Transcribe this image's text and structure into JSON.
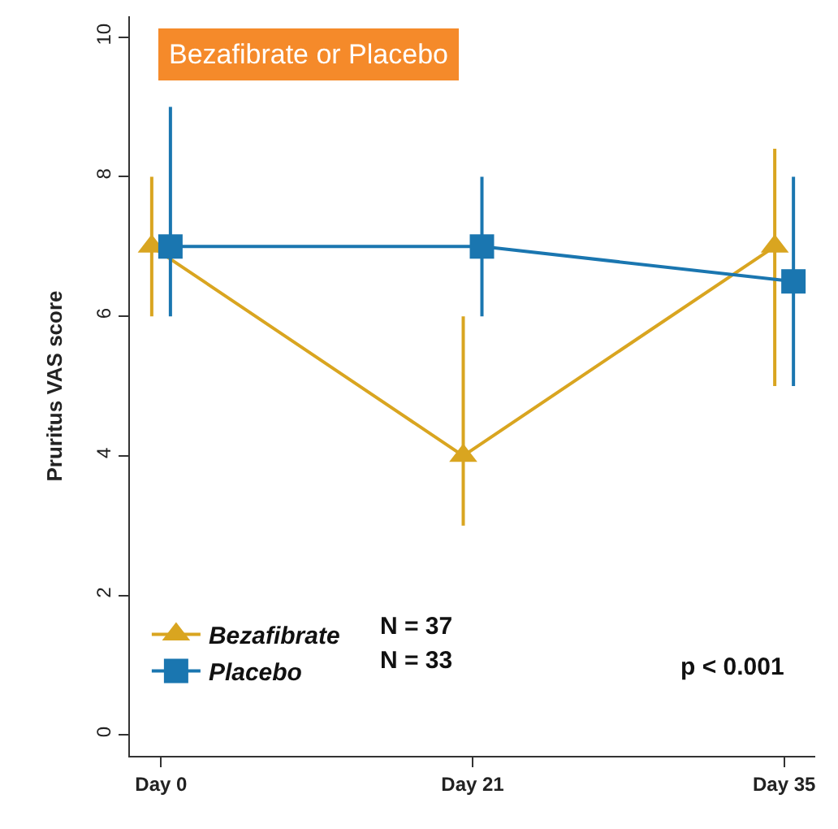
{
  "chart_data": {
    "type": "line",
    "title": "Bezafibrate or Placebo",
    "ylabel": "Pruritus VAS score",
    "categories": [
      "Day 0",
      "Day 21",
      "Day 35"
    ],
    "series": [
      {
        "name": "Bezafibrate",
        "color": "#d9a520",
        "marker": "triangle",
        "values": [
          7.0,
          4.0,
          7.0
        ],
        "errors": [
          [
            6,
            8
          ],
          [
            3,
            6
          ],
          [
            5,
            8.4
          ]
        ]
      },
      {
        "name": "Placebo",
        "color": "#1a76b0",
        "marker": "square",
        "values": [
          7.0,
          7.0,
          6.5
        ],
        "errors": [
          [
            6,
            9
          ],
          [
            6,
            8
          ],
          [
            5,
            8
          ]
        ]
      }
    ],
    "ylim": [
      -0.3,
      10.3
    ],
    "yticks": [
      0,
      2,
      4,
      6,
      8,
      10
    ],
    "legend": "bottom left",
    "annotations": [
      "N = 37",
      "N = 33",
      "p < 0.001"
    ]
  }
}
